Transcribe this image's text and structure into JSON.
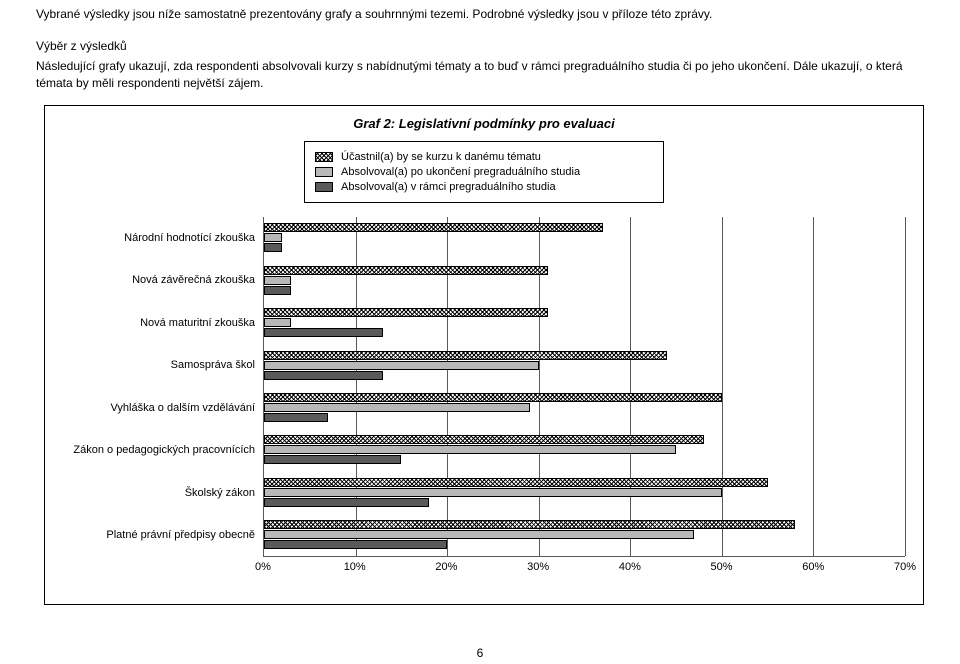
{
  "intro": "Vybrané výsledky jsou níže samostatně prezentovány grafy a souhrnnými tezemi. Podrobné výsledky jsou v příloze této zprávy.",
  "subhead": "Výběr z výsledků",
  "desc": "Následující grafy ukazují, zda respondenti absolvovali kurzy s nabídnutými tématy a to buď v rámci pregraduálního studia či po jeho ukončení. Dále ukazují, o která témata by měli respondenti největší zájem.",
  "chart": {
    "title": "Graf 2: Legislativní podmínky pro evaluaci",
    "legend": [
      "Účastnil(a) by se kurzu k danému tématu",
      "Absolvoval(a) po ukončení pregraduálního studia",
      "Absolvoval(a) v rámci pregraduálního studia"
    ],
    "categories": [
      "Národní hodnotící zkouška",
      "Nová závěrečná zkouška",
      "Nová maturitní zkouška",
      "Samospráva škol",
      "Vyhláška o dalším vzdělávání",
      "Zákon o pedagogických pracovnících",
      "Školský zákon",
      "Platné právní předpisy obecně"
    ],
    "series": {
      "pattern": [
        37,
        31,
        31,
        44,
        50,
        48,
        55,
        58
      ],
      "gray": [
        2,
        3,
        3,
        30,
        29,
        45,
        50,
        47
      ],
      "dark": [
        2,
        3,
        13,
        13,
        7,
        15,
        18,
        20
      ]
    },
    "xmax": 70,
    "xtick_step": 10,
    "xticks": [
      "0%",
      "10%",
      "20%",
      "30%",
      "40%",
      "50%",
      "60%",
      "70%"
    ],
    "colors": {
      "pattern_bg": "#ffffff",
      "gray": "#b8b8b8",
      "dark": "#5a5a5a",
      "grid": "#5a5a5a"
    },
    "title_fontsize": 13,
    "label_fontsize": 11
  },
  "page_number": "6"
}
